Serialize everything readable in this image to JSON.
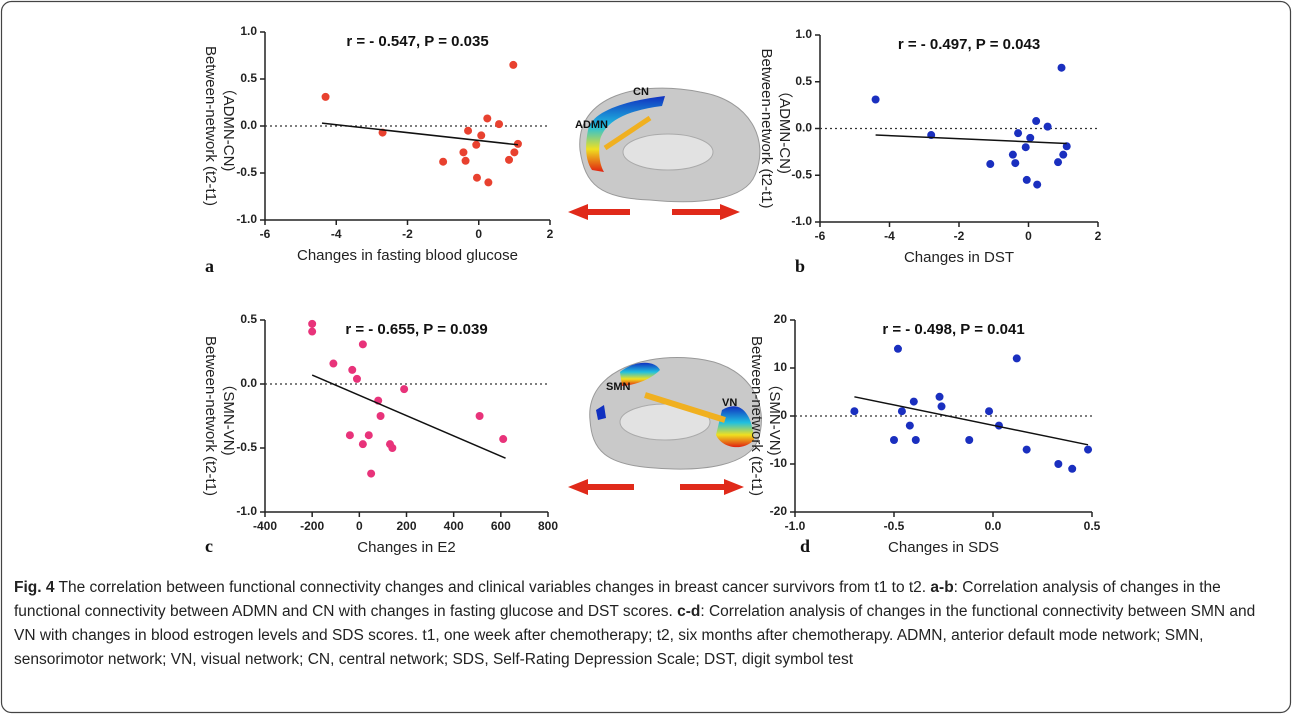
{
  "chart_data": [
    {
      "type": "scatter",
      "panel": "a",
      "annotation": "r = - 0.547, P = 0.035",
      "xlabel": "Changes in fasting blood glucose",
      "ylabel": [
        "Between-network (t2-t1)",
        "（ADMN-CN)"
      ],
      "color": "#e8412f",
      "x": [
        -4.3,
        -2.7,
        -1.0,
        -0.43,
        -0.37,
        -0.3,
        -0.07,
        -0.05,
        0.07,
        0.24,
        0.27,
        0.57,
        0.85,
        0.97,
        1.0,
        1.1
      ],
      "values": [
        0.31,
        -0.07,
        -0.38,
        -0.28,
        -0.37,
        -0.05,
        -0.2,
        -0.55,
        -0.1,
        0.08,
        -0.6,
        0.02,
        -0.36,
        0.65,
        -0.28,
        -0.19
      ],
      "fit": {
        "x": [
          -4.4,
          1.1
        ],
        "y": [
          0.03,
          -0.2
        ]
      },
      "hline": 0,
      "xlim": [
        -6,
        2
      ],
      "xticks": [
        -6,
        -4,
        -2,
        0,
        2
      ],
      "ylim": [
        -1,
        1
      ],
      "yticks": [
        {
          "value": -1,
          "label": "-1.0"
        },
        -0.5,
        {
          "value": 0,
          "label": "0.0"
        },
        0.5,
        {
          "value": 1,
          "label": "1.0"
        }
      ]
    },
    {
      "type": "scatter",
      "panel": "b",
      "annotation": "r = - 0.497, P = 0.043",
      "xlabel": "Changes in DST",
      "ylabel": [
        "Between-network (t2-t1)",
        "（ADMN-CN)"
      ],
      "color": "#1a2fbf",
      "x": [
        -4.4,
        -2.8,
        -1.1,
        -0.45,
        -0.38,
        -0.3,
        -0.08,
        -0.05,
        0.05,
        0.22,
        0.25,
        0.55,
        0.85,
        0.95,
        1.0,
        1.1
      ],
      "values": [
        0.31,
        -0.07,
        -0.38,
        -0.28,
        -0.37,
        -0.05,
        -0.2,
        -0.55,
        -0.1,
        0.08,
        -0.6,
        0.02,
        -0.36,
        0.65,
        -0.28,
        -0.19
      ],
      "fit": {
        "x": [
          -4.4,
          1.1
        ],
        "y": [
          -0.07,
          -0.16
        ]
      },
      "hline": 0,
      "xlim": [
        -6,
        2
      ],
      "xticks": [
        -6,
        -4,
        -2,
        0,
        2
      ],
      "ylim": [
        -1,
        1
      ],
      "yticks": [
        {
          "value": -1,
          "label": "-1.0"
        },
        -0.5,
        {
          "value": 0,
          "label": "0.0"
        },
        0.5,
        {
          "value": 1,
          "label": "1.0"
        }
      ]
    },
    {
      "type": "scatter",
      "panel": "c",
      "annotation": "r = - 0.655, P = 0.039",
      "xlabel": "Changes in E2",
      "ylabel": [
        "Between-network (t2-t1)",
        "（SMN-VN)"
      ],
      "color": "#e8337a",
      "x": [
        -200,
        -200,
        -110,
        -30,
        -10,
        15,
        -40,
        15,
        40,
        50,
        80,
        90,
        130,
        140,
        190,
        510,
        610
      ],
      "values": [
        0.47,
        0.41,
        0.16,
        0.11,
        0.04,
        0.31,
        -0.4,
        -0.47,
        -0.4,
        -0.7,
        -0.13,
        -0.25,
        -0.47,
        -0.5,
        -0.04,
        -0.25,
        -0.43
      ],
      "fit": {
        "x": [
          -200,
          620
        ],
        "y": [
          0.07,
          -0.58
        ]
      },
      "hline": 0,
      "xlim": [
        -400,
        800
      ],
      "xticks": [
        -400,
        -200,
        0,
        200,
        400,
        600,
        800
      ],
      "ylim": [
        -1,
        0.5
      ],
      "yticks": [
        {
          "value": -1,
          "label": "-1.0"
        },
        -0.5,
        {
          "value": 0,
          "label": "0.0"
        },
        0.5
      ]
    },
    {
      "type": "scatter",
      "panel": "d",
      "annotation": "r = - 0.498, P = 0.041",
      "xlabel": "Changes in SDS",
      "ylabel": [
        "Between-network (t2-t1)",
        "（SMN-VN)"
      ],
      "color": "#1a2fbf",
      "x": [
        -0.7,
        -0.48,
        -0.5,
        -0.46,
        -0.42,
        -0.4,
        -0.39,
        -0.27,
        -0.26,
        -0.12,
        -0.02,
        0.03,
        0.12,
        0.17,
        0.33,
        0.4,
        0.48
      ],
      "values": [
        1,
        14,
        -5,
        1,
        -2,
        3,
        -5,
        4,
        2,
        -5,
        1,
        -2,
        12,
        -7,
        -10,
        -11,
        -7
      ],
      "fit": {
        "x": [
          -0.7,
          0.48
        ],
        "y": [
          4,
          -6
        ]
      },
      "hline": 0,
      "xlim": [
        -1,
        0.5
      ],
      "xticks": [
        {
          "value": -1,
          "label": "-1.0"
        },
        -0.5,
        {
          "value": 0,
          "label": "0.0"
        },
        0.5
      ],
      "ylim": [
        -20,
        20
      ],
      "yticks": [
        -20,
        -10,
        0,
        10,
        20
      ]
    }
  ],
  "brain_labels": {
    "top": [
      "CN",
      "ADMN"
    ],
    "bottom": [
      "SMN",
      "VN"
    ]
  },
  "caption": [
    {
      "text": "Fig. 4",
      "bold": true
    },
    {
      "text": " The correlation between functional connectivity changes and clinical variables changes in breast cancer survivors from t1 to t2. ",
      "bold": false
    },
    {
      "text": "a-b",
      "bold": true
    },
    {
      "text": ": Correlation analysis of changes in the functional connectivity between ADMN and CN with changes in fasting glucose and DST scores. ",
      "bold": false
    },
    {
      "text": "c-d",
      "bold": true
    },
    {
      "text": ": Correlation analysis of changes in the functional connectivity between SMN and VN with changes in blood estrogen levels and SDS scores. t1, one week after chemotherapy; t2, six months after chemotherapy. ADMN, anterior default mode network; SMN, sensorimotor network; VN, visual network; CN, central network; SDS, Self-Rating Depression Scale; DST, digit symbol test",
      "bold": false
    }
  ]
}
